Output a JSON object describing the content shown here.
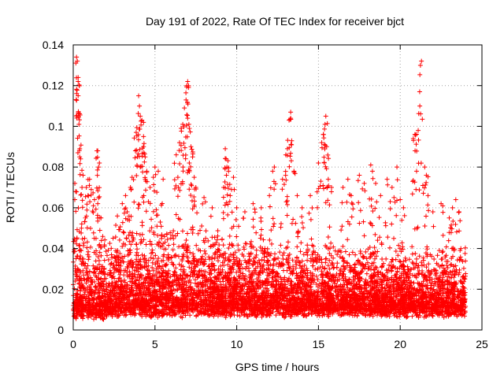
{
  "chart_data": {
    "type": "scatter",
    "title": "Day 191 of 2022, Rate Of TEC Index for receiver bjct",
    "xlabel": "GPS time / hours",
    "ylabel": "ROTI / TECUs",
    "xlim": [
      0,
      25
    ],
    "ylim": [
      0,
      0.14
    ],
    "xticks": [
      0,
      5,
      10,
      15,
      20,
      25
    ],
    "xtick_labels": [
      "0",
      "5",
      "10",
      "15",
      "20",
      "25"
    ],
    "yticks": [
      0,
      0.02,
      0.04,
      0.06,
      0.08,
      0.1,
      0.12,
      0.14
    ],
    "ytick_labels": [
      "0",
      "0.02",
      "0.04",
      "0.06",
      "0.08",
      "0.1",
      "0.12",
      "0.14"
    ],
    "grid": true,
    "marker": "+",
    "marker_color": "#ff0000",
    "series": [
      {
        "name": "ROTI",
        "points": [
          [
            0.2,
            0.134
          ],
          [
            0.25,
            0.132
          ],
          [
            0.3,
            0.124
          ],
          [
            0.3,
            0.122
          ],
          [
            0.3,
            0.115
          ],
          [
            0.35,
            0.101
          ],
          [
            0.4,
            0.089
          ],
          [
            0.45,
            0.084
          ],
          [
            0.1,
            0.072
          ],
          [
            0.15,
            0.068
          ],
          [
            0.6,
            0.076
          ],
          [
            0.8,
            0.07
          ],
          [
            0.9,
            0.066
          ],
          [
            1.0,
            0.074
          ],
          [
            1.1,
            0.069
          ],
          [
            1.3,
            0.064
          ],
          [
            1.5,
            0.088
          ],
          [
            1.6,
            0.082
          ],
          [
            1.55,
            0.08
          ],
          [
            1.5,
            0.062
          ],
          [
            1.7,
            0.055
          ],
          [
            0.5,
            0.05
          ],
          [
            0.7,
            0.045
          ],
          [
            2.7,
            0.056
          ],
          [
            3.0,
            0.062
          ],
          [
            3.2,
            0.066
          ],
          [
            3.3,
            0.058
          ],
          [
            3.5,
            0.07
          ],
          [
            3.6,
            0.075
          ],
          [
            3.8,
            0.088
          ],
          [
            3.85,
            0.097
          ],
          [
            4.0,
            0.115
          ],
          [
            4.05,
            0.11
          ],
          [
            4.1,
            0.105
          ],
          [
            4.2,
            0.103
          ],
          [
            4.3,
            0.095
          ],
          [
            4.3,
            0.09
          ],
          [
            4.1,
            0.08
          ],
          [
            4.4,
            0.085
          ],
          [
            4.5,
            0.078
          ],
          [
            4.7,
            0.07
          ],
          [
            4.9,
            0.075
          ],
          [
            5.0,
            0.08
          ],
          [
            5.2,
            0.078
          ],
          [
            5.5,
            0.074
          ],
          [
            6.3,
            0.086
          ],
          [
            6.5,
            0.092
          ],
          [
            6.6,
            0.099
          ],
          [
            6.7,
            0.101
          ],
          [
            6.8,
            0.109
          ],
          [
            6.9,
            0.113
          ],
          [
            6.95,
            0.12
          ],
          [
            7.0,
            0.122
          ],
          [
            7.0,
            0.104
          ],
          [
            7.1,
            0.099
          ],
          [
            7.2,
            0.09
          ],
          [
            7.3,
            0.085
          ],
          [
            7.1,
            0.082
          ],
          [
            6.4,
            0.075
          ],
          [
            7.4,
            0.075
          ],
          [
            7.5,
            0.07
          ],
          [
            8.0,
            0.065
          ],
          [
            8.5,
            0.06
          ],
          [
            9.3,
            0.089
          ],
          [
            9.35,
            0.084
          ],
          [
            9.4,
            0.08
          ],
          [
            9.5,
            0.078
          ],
          [
            9.2,
            0.07
          ],
          [
            9.6,
            0.066
          ],
          [
            9.8,
            0.075
          ],
          [
            10.0,
            0.06
          ],
          [
            10.5,
            0.058
          ],
          [
            11.0,
            0.062
          ],
          [
            11.5,
            0.06
          ],
          [
            12.0,
            0.066
          ],
          [
            12.2,
            0.078
          ],
          [
            12.3,
            0.08
          ],
          [
            12.8,
            0.074
          ],
          [
            13.0,
            0.086
          ],
          [
            13.1,
            0.089
          ],
          [
            13.2,
            0.103
          ],
          [
            13.3,
            0.104
          ],
          [
            13.3,
            0.107
          ],
          [
            13.5,
            0.078
          ],
          [
            13.7,
            0.066
          ],
          [
            14.0,
            0.06
          ],
          [
            14.5,
            0.066
          ],
          [
            15.0,
            0.082
          ],
          [
            15.2,
            0.092
          ],
          [
            15.3,
            0.096
          ],
          [
            15.4,
            0.101
          ],
          [
            15.45,
            0.105
          ],
          [
            15.5,
            0.09
          ],
          [
            15.6,
            0.074
          ],
          [
            15.8,
            0.07
          ],
          [
            16.5,
            0.07
          ],
          [
            16.8,
            0.074
          ],
          [
            17.0,
            0.066
          ],
          [
            17.5,
            0.076
          ],
          [
            17.8,
            0.072
          ],
          [
            18.2,
            0.081
          ],
          [
            18.3,
            0.078
          ],
          [
            18.5,
            0.072
          ],
          [
            18.8,
            0.066
          ],
          [
            19.2,
            0.074
          ],
          [
            19.5,
            0.07
          ],
          [
            19.8,
            0.08
          ],
          [
            20.0,
            0.064
          ],
          [
            20.2,
            0.06
          ],
          [
            20.8,
            0.094
          ],
          [
            20.9,
            0.096
          ],
          [
            21.0,
            0.078
          ],
          [
            21.1,
            0.098
          ],
          [
            21.2,
            0.11
          ],
          [
            21.3,
            0.132
          ],
          [
            21.5,
            0.08
          ],
          [
            21.6,
            0.076
          ],
          [
            21.7,
            0.066
          ],
          [
            22.0,
            0.058
          ],
          [
            22.5,
            0.062
          ],
          [
            23.0,
            0.055
          ],
          [
            23.2,
            0.06
          ],
          [
            23.4,
            0.064
          ],
          [
            23.6,
            0.058
          ]
        ],
        "dense_band": [
          {
            "x": [
              0,
              2.5
            ],
            "y": [
              0.005,
              0.045
            ]
          },
          {
            "x": [
              2.5,
              9
            ],
            "y": [
              0.006,
              0.05
            ]
          },
          {
            "x": [
              9,
              15.5
            ],
            "y": [
              0.006,
              0.045
            ]
          },
          {
            "x": [
              15.5,
              24
            ],
            "y": [
              0.006,
              0.04
            ]
          }
        ]
      }
    ]
  }
}
